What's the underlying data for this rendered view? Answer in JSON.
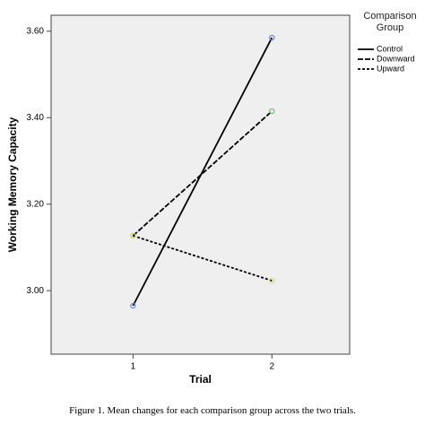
{
  "chart_data": {
    "type": "line",
    "x_label": "Trial",
    "y_label": "Working Memory Capacity",
    "caption": "Figure 1. Mean changes for each comparison group across the two trials.",
    "legend_title": "Comparison Group",
    "legend": "right",
    "x": [
      1,
      2
    ],
    "xlim": [
      0.41,
      2.56
    ],
    "xticks": [
      1,
      2
    ],
    "ylim": [
      2.853,
      3.637
    ],
    "yticks": [
      {
        "value": 3.0,
        "label": "3.00"
      },
      {
        "value": 3.2,
        "label": "3.20"
      },
      {
        "value": 3.4,
        "label": "3.40"
      },
      {
        "value": 3.6,
        "label": "3.60"
      }
    ],
    "plot_background": "#efefef",
    "series": [
      {
        "name": "Control",
        "color": "#000000",
        "dash": "solid",
        "marker_color": "#6f86d6",
        "values": [
          2.965,
          3.585
        ]
      },
      {
        "name": "Downward",
        "color": "#000000",
        "dash": "dashed",
        "marker_color": "#6fbf6f",
        "values": [
          3.127,
          3.415
        ]
      },
      {
        "name": "Upward",
        "color": "#000000",
        "dash": "dotted",
        "marker_color": "#d9d96a",
        "values": [
          3.127,
          3.023
        ]
      }
    ]
  }
}
